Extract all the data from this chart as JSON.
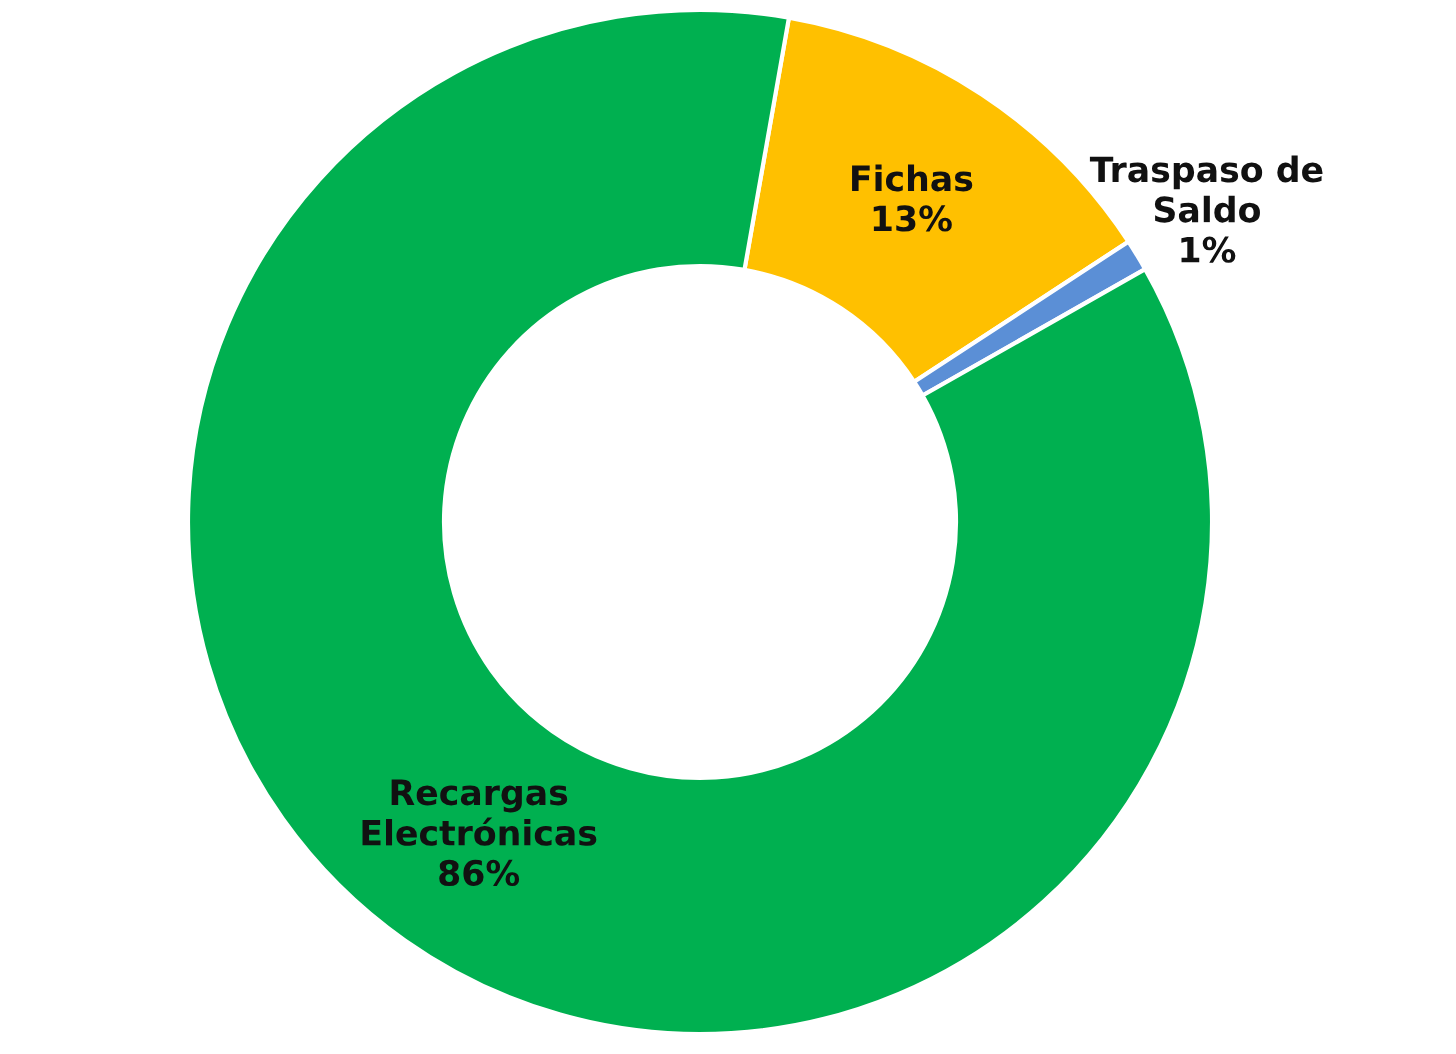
{
  "chart_data": {
    "type": "donut",
    "categories": [
      "Fichas",
      "Traspaso de\nSaldo",
      "Recargas\nElectrónicas"
    ],
    "values": [
      13,
      1,
      86
    ],
    "value_labels": [
      "13%",
      "1%",
      "86%"
    ],
    "colors": [
      "#ffc000",
      "#5b8fd6",
      "#00b050"
    ],
    "legend": false
  }
}
